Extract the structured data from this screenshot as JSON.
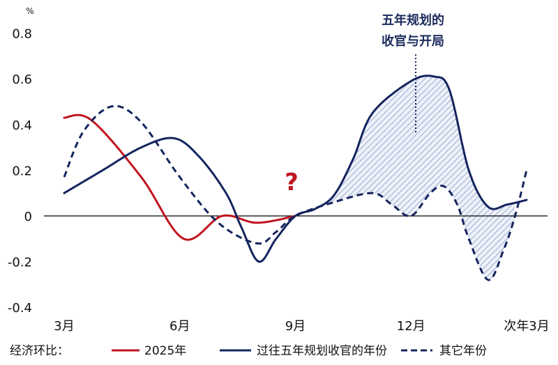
{
  "chart_data": {
    "type": "line",
    "title": "",
    "yunit": "%",
    "xlabel": "",
    "ylabel": "",
    "ylim": [
      -0.4,
      0.8
    ],
    "yticks": [
      "0.8",
      "0.6",
      "0.4",
      "0.2",
      "0",
      "-0.2",
      "-0.4"
    ],
    "ytick_values": [
      0.8,
      0.6,
      0.4,
      0.2,
      0,
      -0.2,
      -0.4
    ],
    "xticks": [
      "3月",
      "6月",
      "9月",
      "12月",
      "次年3月"
    ],
    "xtick_months": [
      0,
      3,
      6,
      9,
      12
    ],
    "grid": false,
    "legend_position": "bottom",
    "legend_prefix": "经济环比：",
    "series": [
      {
        "name": "2025年",
        "color": "#c0141e",
        "style": "solid",
        "points": [
          [
            0,
            0.43
          ],
          [
            0.7,
            0.42
          ],
          [
            2,
            0.17
          ],
          [
            3.1,
            -0.1
          ],
          [
            4.1,
            0
          ],
          [
            5,
            -0.03
          ],
          [
            6,
            0
          ]
        ]
      },
      {
        "name": "过往五年规划收官的年份",
        "color": "#14245e",
        "style": "solid",
        "points": [
          [
            0,
            0.1
          ],
          [
            1,
            0.2
          ],
          [
            2,
            0.3
          ],
          [
            2.85,
            0.34
          ],
          [
            3.5,
            0.26
          ],
          [
            4.2,
            0.1
          ],
          [
            4.6,
            -0.05
          ],
          [
            5.05,
            -0.2
          ],
          [
            5.5,
            -0.1
          ],
          [
            6,
            0
          ],
          [
            6.5,
            0.03
          ],
          [
            7,
            0.09
          ],
          [
            7.5,
            0.25
          ],
          [
            8,
            0.45
          ],
          [
            9,
            0.59
          ],
          [
            9.6,
            0.61
          ],
          [
            10,
            0.55
          ],
          [
            10.5,
            0.2
          ],
          [
            11,
            0.04
          ],
          [
            11.5,
            0.05
          ],
          [
            12,
            0.07
          ]
        ]
      },
      {
        "name": "其它年份",
        "color": "#14245e",
        "style": "dashed",
        "points": [
          [
            0,
            0.17
          ],
          [
            0.5,
            0.37
          ],
          [
            1.25,
            0.48
          ],
          [
            2,
            0.41
          ],
          [
            3,
            0.17
          ],
          [
            4,
            -0.03
          ],
          [
            5,
            -0.12
          ],
          [
            5.5,
            -0.07
          ],
          [
            6,
            0
          ],
          [
            7,
            0.06
          ],
          [
            8,
            0.1
          ],
          [
            8.5,
            0.05
          ],
          [
            9,
            0
          ],
          [
            9.5,
            0.1
          ],
          [
            9.85,
            0.13
          ],
          [
            10.2,
            0.05
          ],
          [
            10.5,
            -0.1
          ],
          [
            11,
            -0.28
          ],
          [
            11.4,
            -0.15
          ],
          [
            11.7,
            0
          ],
          [
            12,
            0.2
          ]
        ]
      }
    ],
    "shaded_region": {
      "between": [
        "过往五年规划收官的年份",
        "其它年份"
      ],
      "from_month": 6.3,
      "to_month": 11.7,
      "color": "#9fb0d6"
    },
    "annotations": {
      "callout_line1": "五年规划的",
      "callout_line2": "收官与开局",
      "question_mark": "?",
      "question_color": "#c0141e"
    }
  }
}
